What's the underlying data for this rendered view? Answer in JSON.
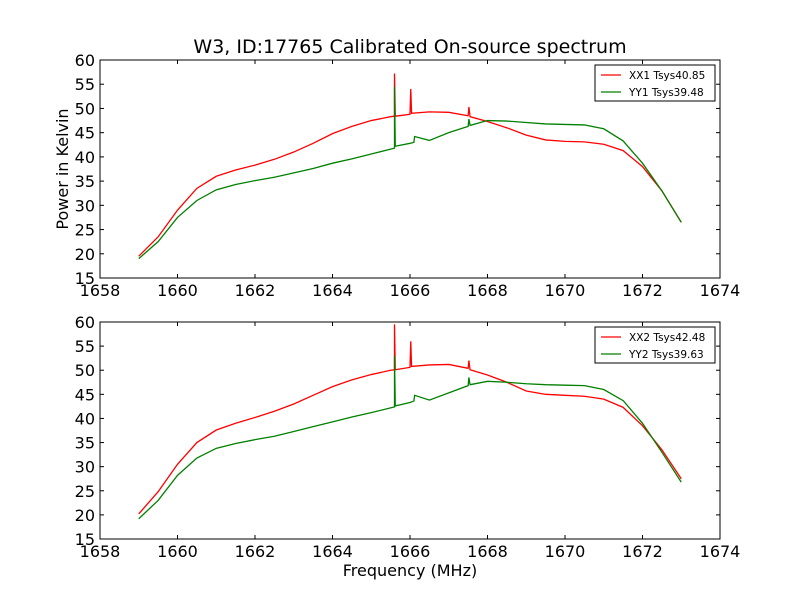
{
  "title": "W3, ID:17765 Calibrated On-source spectrum",
  "chart_data": [
    {
      "type": "line",
      "title": "W3, ID:17765 Calibrated On-source spectrum",
      "xlabel": "",
      "ylabel": "Power in Kelvin",
      "xlim": [
        1658,
        1674
      ],
      "ylim": [
        15,
        60
      ],
      "xticks": [
        "1658",
        "1660",
        "1662",
        "1664",
        "1666",
        "1668",
        "1670",
        "1672",
        "1674"
      ],
      "yticks": [
        "15",
        "20",
        "25",
        "30",
        "35",
        "40",
        "45",
        "50",
        "55",
        "60"
      ],
      "grid": false,
      "legend_position": "top-right",
      "series": [
        {
          "name": "XX1 Tsys40.85",
          "color": "#ff0000",
          "x": [
            1659.0,
            1659.5,
            1660.0,
            1660.5,
            1661.0,
            1661.5,
            1662.0,
            1662.5,
            1663.0,
            1663.5,
            1664.0,
            1664.5,
            1665.0,
            1665.5,
            1665.6,
            1665.6,
            1665.62,
            1666.0,
            1666.02,
            1666.04,
            1666.5,
            1667.0,
            1667.5,
            1667.52,
            1667.55,
            1668.0,
            1668.5,
            1669.0,
            1669.5,
            1670.0,
            1670.5,
            1671.0,
            1671.5,
            1672.0,
            1672.5,
            1673.0
          ],
          "y": [
            19.5,
            23.5,
            29.0,
            33.5,
            36.0,
            37.3,
            38.3,
            39.5,
            41.0,
            42.8,
            44.8,
            46.3,
            47.5,
            48.3,
            48.4,
            57.2,
            48.4,
            48.8,
            54.0,
            49.0,
            49.3,
            49.2,
            48.5,
            50.3,
            48.3,
            47.3,
            46.0,
            44.5,
            43.5,
            43.2,
            43.1,
            42.6,
            41.3,
            38.0,
            33.0,
            26.5
          ]
        },
        {
          "name": "YY1 Tsys39.48",
          "color": "#008000",
          "x": [
            1659.0,
            1659.5,
            1660.0,
            1660.5,
            1661.0,
            1661.5,
            1662.0,
            1662.5,
            1663.0,
            1663.5,
            1664.0,
            1664.5,
            1665.0,
            1665.5,
            1665.6,
            1665.6,
            1665.62,
            1666.0,
            1666.1,
            1666.12,
            1666.5,
            1667.0,
            1667.5,
            1667.52,
            1667.55,
            1668.0,
            1668.5,
            1669.0,
            1669.5,
            1670.0,
            1670.5,
            1671.0,
            1671.5,
            1672.0,
            1672.5,
            1673.0
          ],
          "y": [
            19.0,
            22.5,
            27.5,
            31.0,
            33.2,
            34.3,
            35.1,
            35.8,
            36.7,
            37.6,
            38.7,
            39.6,
            40.6,
            41.6,
            41.8,
            54.5,
            42.2,
            42.8,
            43.0,
            44.2,
            43.4,
            45.0,
            46.3,
            47.8,
            46.5,
            47.5,
            47.4,
            47.1,
            46.8,
            46.7,
            46.6,
            45.8,
            43.3,
            38.7,
            33.0,
            26.5
          ]
        }
      ]
    },
    {
      "type": "line",
      "title": "",
      "xlabel": "Frequency (MHz)",
      "ylabel": "",
      "xlim": [
        1658,
        1674
      ],
      "ylim": [
        15,
        60
      ],
      "xticks": [
        "1658",
        "1660",
        "1662",
        "1664",
        "1666",
        "1668",
        "1670",
        "1672",
        "1674"
      ],
      "yticks": [
        "15",
        "20",
        "25",
        "30",
        "35",
        "40",
        "45",
        "50",
        "55",
        "60"
      ],
      "grid": false,
      "legend_position": "top-right",
      "series": [
        {
          "name": "XX2 Tsys42.48",
          "color": "#ff0000",
          "x": [
            1659.0,
            1659.5,
            1660.0,
            1660.5,
            1661.0,
            1661.5,
            1662.0,
            1662.5,
            1663.0,
            1663.5,
            1664.0,
            1664.5,
            1665.0,
            1665.5,
            1665.6,
            1665.6,
            1665.62,
            1666.0,
            1666.02,
            1666.04,
            1666.5,
            1667.0,
            1667.5,
            1667.52,
            1667.55,
            1668.0,
            1668.5,
            1669.0,
            1669.5,
            1670.0,
            1670.5,
            1671.0,
            1671.5,
            1672.0,
            1672.5,
            1673.0
          ],
          "y": [
            20.2,
            24.8,
            30.5,
            35.0,
            37.6,
            39.0,
            40.2,
            41.5,
            43.0,
            44.8,
            46.6,
            48.0,
            49.1,
            50.0,
            50.1,
            59.5,
            50.1,
            50.6,
            56.0,
            50.8,
            51.1,
            51.2,
            50.4,
            52.0,
            50.1,
            49.0,
            47.5,
            45.7,
            45.0,
            44.8,
            44.6,
            44.0,
            42.3,
            38.5,
            33.5,
            27.5
          ]
        },
        {
          "name": "YY2 Tsys39.63",
          "color": "#008000",
          "x": [
            1659.0,
            1659.5,
            1660.0,
            1660.5,
            1661.0,
            1661.5,
            1662.0,
            1662.5,
            1663.0,
            1663.5,
            1664.0,
            1664.5,
            1665.0,
            1665.5,
            1665.6,
            1665.6,
            1665.62,
            1666.0,
            1666.1,
            1666.12,
            1666.5,
            1667.0,
            1667.5,
            1667.52,
            1667.55,
            1668.0,
            1668.5,
            1669.0,
            1669.5,
            1670.0,
            1670.5,
            1671.0,
            1671.5,
            1672.0,
            1672.5,
            1673.0
          ],
          "y": [
            19.2,
            23.0,
            28.2,
            31.8,
            33.8,
            34.8,
            35.6,
            36.3,
            37.3,
            38.3,
            39.3,
            40.3,
            41.2,
            42.2,
            42.4,
            53.0,
            42.6,
            43.3,
            43.6,
            44.8,
            43.8,
            45.3,
            46.8,
            48.5,
            47.0,
            47.7,
            47.5,
            47.2,
            47.0,
            46.9,
            46.8,
            46.0,
            43.7,
            39.0,
            33.0,
            26.8
          ]
        }
      ]
    }
  ]
}
